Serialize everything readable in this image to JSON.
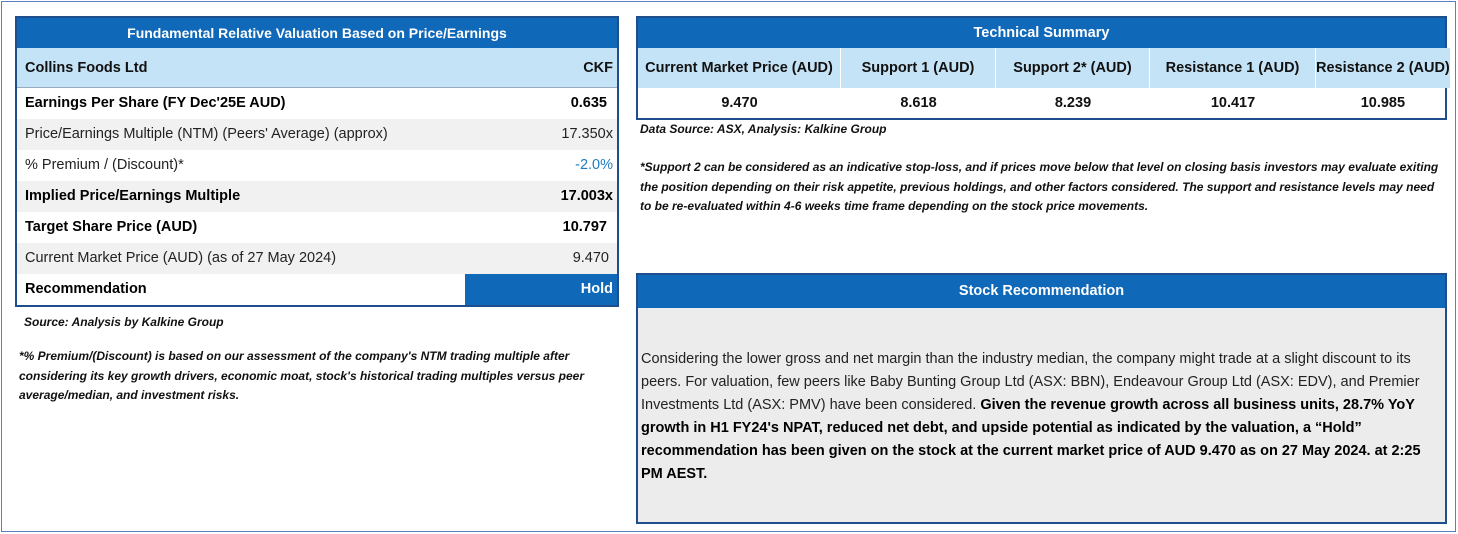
{
  "valuation": {
    "title": "Fundamental Relative Valuation Based on Price/Earnings",
    "company": "Collins Foods Ltd",
    "ticker": "CKF",
    "rows": [
      {
        "label": "Earnings Per Share (FY Dec'25E AUD)",
        "value": "0.635"
      },
      {
        "label": "Price/Earnings Multiple (NTM) (Peers' Average) (approx)",
        "value": "17.350x"
      },
      {
        "label": "% Premium / (Discount)*",
        "value": "-2.0%"
      },
      {
        "label": "Implied Price/Earnings Multiple",
        "value": "17.003x"
      },
      {
        "label": "Target Share Price (AUD)",
        "value": "10.797"
      },
      {
        "label": "Current Market Price (AUD) (as of 27 May 2024)",
        "value": "9.470"
      }
    ],
    "recommendation_label": "Recommendation",
    "recommendation_value": "Hold",
    "source": "Source: Analysis by Kalkine Group",
    "footnote": "*% Premium/(Discount) is based on our assessment of the company's NTM trading multiple after considering its key growth drivers, economic moat, stock's historical trading multiples versus peer average/median, and investment risks."
  },
  "technical": {
    "title": "Technical Summary",
    "headers": [
      "Current Market Price (AUD)",
      "Support 1 (AUD)",
      "Support 2* (AUD)",
      "Resistance 1 (AUD)",
      "Resistance 2 (AUD)"
    ],
    "values": [
      "9.470",
      "8.618",
      "8.239",
      "10.417",
      "10.985"
    ],
    "source": "Data Source: ASX, Analysis: Kalkine Group",
    "footnote": "*Support 2 can be considered as an indicative stop-loss, and if prices move below that level on closing basis investors may evaluate exiting the position depending on their risk appetite, previous holdings, and other factors considered. The support and resistance levels may need to be re-evaluated within 4-6 weeks time frame depending on the stock price movements."
  },
  "recommendation": {
    "title": "Stock Recommendation",
    "body_regular": "Considering the lower gross and net margin than the industry median, the company might trade at a slight discount to its peers. For valuation, few peers like Baby Bunting Group Ltd (ASX: BBN), Endeavour Group Ltd (ASX: EDV), and Premier Investments Ltd (ASX: PMV) have been considered. ",
    "body_bold": "Given the revenue growth across all business units, 28.7% YoY growth in H1 FY24's NPAT, reduced net debt, and upside potential as indicated by the valuation, a “Hold” recommendation has been given on the stock at the current market price of AUD 9.470 as on 27 May 2024. at 2:25 PM AEST."
  },
  "colors": {
    "header_blue": "#1068b9",
    "subheader_light_blue": "#c5e3f6",
    "negative_value": "#1c7cc4",
    "panel_grey": "#ececec"
  }
}
